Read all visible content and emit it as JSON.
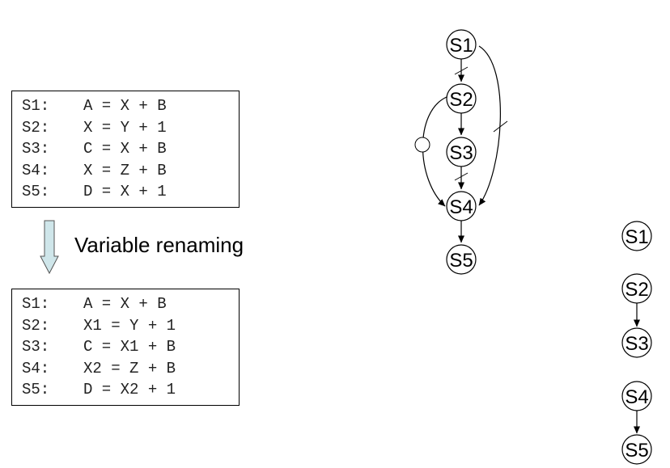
{
  "original_code": {
    "lines": [
      {
        "label": "S1:",
        "expr": "A = X + B"
      },
      {
        "label": "S2:",
        "expr": "X = Y + 1"
      },
      {
        "label": "S3:",
        "expr": "C = X + B"
      },
      {
        "label": "S4:",
        "expr": "X = Z + B"
      },
      {
        "label": "S5:",
        "expr": "D = X + 1"
      }
    ]
  },
  "renaming": {
    "label": "Variable renaming"
  },
  "renamed_code": {
    "lines": [
      {
        "label": "S1:",
        "expr": "A = X + B"
      },
      {
        "label": "S2:",
        "expr": "X1 = Y + 1"
      },
      {
        "label": "S3:",
        "expr": "C = X1 + B"
      },
      {
        "label": "S4:",
        "expr": "X2 = Z + B"
      },
      {
        "label": "S5:",
        "expr": "D = X2 + 1"
      }
    ]
  },
  "graph_before": {
    "nodes": [
      "S1",
      "S2",
      "S3",
      "S4",
      "S5"
    ],
    "edges": [
      {
        "from": "S1",
        "to": "S2",
        "type": "anti"
      },
      {
        "from": "S2",
        "to": "S3",
        "type": "true"
      },
      {
        "from": "S3",
        "to": "S4",
        "type": "anti"
      },
      {
        "from": "S4",
        "to": "S5",
        "type": "true"
      },
      {
        "from": "S2",
        "to": "S4",
        "type": "output"
      },
      {
        "from": "S1",
        "to": "S4",
        "type": "anti"
      }
    ]
  },
  "graph_after": {
    "nodes": [
      "S1",
      "S2",
      "S3",
      "S4",
      "S5"
    ],
    "edges": [
      {
        "from": "S2",
        "to": "S3",
        "type": "true"
      },
      {
        "from": "S4",
        "to": "S5",
        "type": "true"
      }
    ]
  }
}
